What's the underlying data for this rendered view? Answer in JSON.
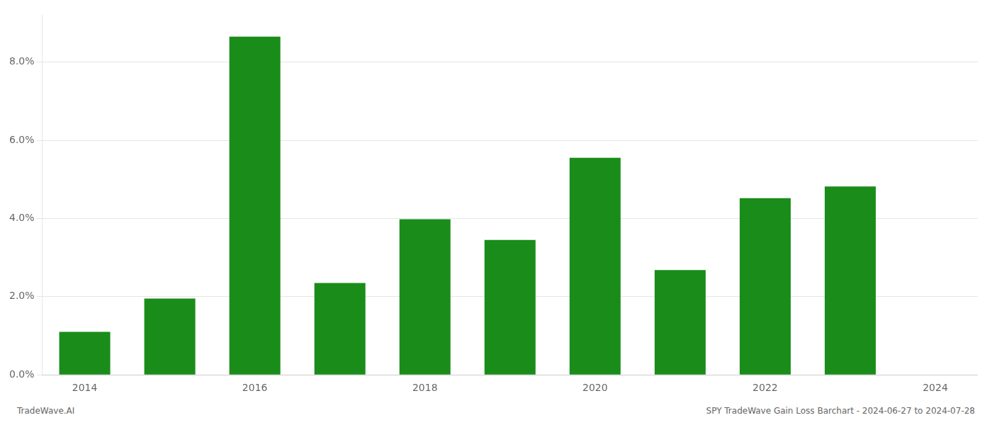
{
  "chart_data": {
    "type": "bar",
    "categories": [
      "2014",
      null,
      "2016",
      null,
      "2018",
      null,
      "2020",
      null,
      "2022",
      null,
      "2024"
    ],
    "values": [
      0.011,
      0.0195,
      0.0865,
      0.0235,
      0.0398,
      0.0345,
      0.0555,
      0.0268,
      0.0452,
      0.0482,
      null
    ],
    "color": "#1a8c1a",
    "ylim": [
      0.0,
      0.092
    ],
    "yticks": [
      {
        "value": 0.0,
        "label": "0.0%"
      },
      {
        "value": 0.02,
        "label": "2.0%"
      },
      {
        "value": 0.04,
        "label": "4.0%"
      },
      {
        "value": 0.06,
        "label": "6.0%"
      },
      {
        "value": 0.08,
        "label": "8.0%"
      }
    ],
    "grid": true,
    "annotations": [
      "TradeWave.AI",
      "SPY TradeWave Gain Loss Barchart - 2024-06-27 to 2024-07-28"
    ]
  }
}
